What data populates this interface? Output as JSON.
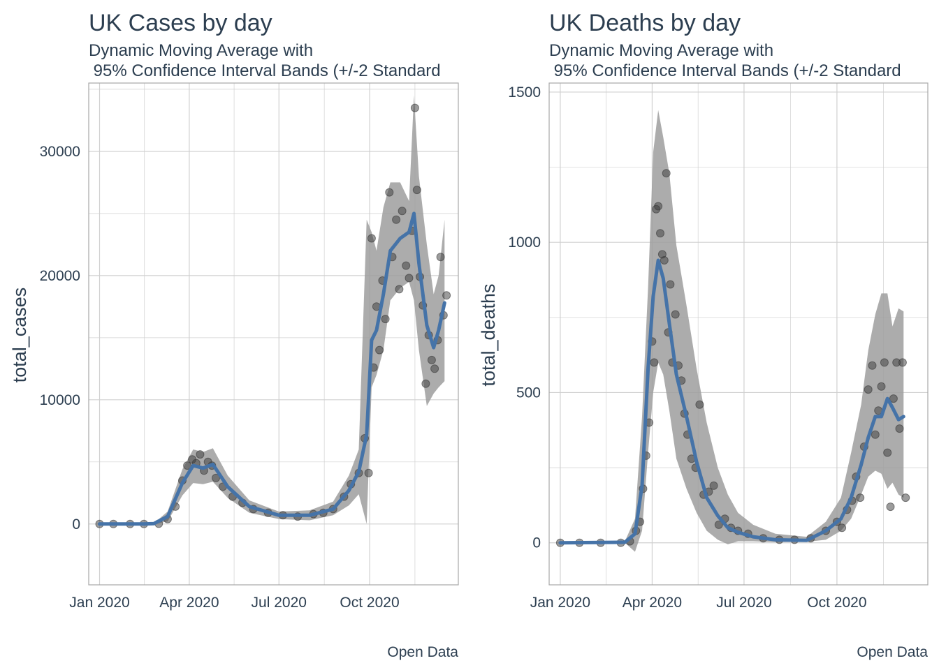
{
  "colors": {
    "text": "#2c3e50",
    "grid": "#d0d0d0",
    "panel_border": "#a8a8a8",
    "band": "#9e9e9e",
    "points": "#3a3a3a",
    "line": "#4573a8"
  },
  "chart_data": [
    {
      "type": "scatter",
      "title": "UK Cases by day",
      "subtitle_lines": [
        "Dynamic Moving Average with",
        " 95% Confidence Interval Bands (+/-2 Standard"
      ],
      "xlabel": "",
      "ylabel": "total_cases",
      "caption": "Open Data",
      "xlim": [
        "2019-12-21",
        "2020-12-30"
      ],
      "ylim": [
        -4900,
        35500
      ],
      "x_ticks": [
        {
          "date": "2020-01-01",
          "label": "Jan 2020"
        },
        {
          "date": "2020-04-01",
          "label": "Apr 2020"
        },
        {
          "date": "2020-07-01",
          "label": "Jul 2020"
        },
        {
          "date": "2020-10-01",
          "label": "Oct 2020"
        }
      ],
      "y_ticks": [
        0,
        10000,
        20000,
        30000
      ],
      "grid": true,
      "legend": "none",
      "series": [
        {
          "kind": "moving_average",
          "x": [
            "2020-01-01",
            "2020-02-15",
            "2020-02-25",
            "2020-03-10",
            "2020-03-25",
            "2020-04-05",
            "2020-04-15",
            "2020-04-25",
            "2020-05-10",
            "2020-06-01",
            "2020-07-01",
            "2020-08-01",
            "2020-08-25",
            "2020-09-10",
            "2020-09-20",
            "2020-09-28",
            "2020-10-03",
            "2020-10-08",
            "2020-10-15",
            "2020-10-22",
            "2020-11-01",
            "2020-11-10",
            "2020-11-15",
            "2020-11-20",
            "2020-11-28",
            "2020-12-05",
            "2020-12-10",
            "2020-12-16"
          ],
          "y": [
            0,
            0,
            30,
            600,
            3300,
            4700,
            4500,
            4800,
            3000,
            1400,
            700,
            700,
            1200,
            2700,
            4200,
            7200,
            14800,
            15600,
            18500,
            22000,
            23000,
            23500,
            25000,
            21000,
            16000,
            14200,
            15600,
            17800
          ],
          "band_lower": [
            0,
            0,
            0,
            200,
            2300,
            3300,
            3200,
            3400,
            2100,
            900,
            400,
            300,
            700,
            1500,
            2400,
            0,
            11000,
            12000,
            14000,
            18000,
            19000,
            19500,
            18000,
            14000,
            9500,
            10500,
            11000,
            11500
          ],
          "band_upper": [
            0,
            0,
            60,
            1000,
            4400,
            6000,
            5800,
            6100,
            3900,
            1900,
            1000,
            1100,
            1800,
            3900,
            6000,
            24500,
            23500,
            22000,
            25500,
            27500,
            27500,
            26000,
            34500,
            28000,
            22500,
            18500,
            20000,
            24500
          ]
        },
        {
          "kind": "daily_points",
          "x": [
            "2020-01-01",
            "2020-01-15",
            "2020-02-01",
            "2020-02-15",
            "2020-03-01",
            "2020-03-10",
            "2020-03-18",
            "2020-03-25",
            "2020-03-30",
            "2020-04-04",
            "2020-04-08",
            "2020-04-12",
            "2020-04-16",
            "2020-04-20",
            "2020-04-24",
            "2020-04-28",
            "2020-05-05",
            "2020-05-15",
            "2020-05-25",
            "2020-06-05",
            "2020-06-20",
            "2020-07-05",
            "2020-07-20",
            "2020-08-05",
            "2020-08-15",
            "2020-08-25",
            "2020-09-05",
            "2020-09-12",
            "2020-09-20",
            "2020-09-26",
            "2020-09-30",
            "2020-10-03",
            "2020-10-05",
            "2020-10-08",
            "2020-10-11",
            "2020-10-14",
            "2020-10-17",
            "2020-10-21",
            "2020-10-24",
            "2020-10-28",
            "2020-10-31",
            "2020-11-03",
            "2020-11-07",
            "2020-11-10",
            "2020-11-13",
            "2020-11-16",
            "2020-11-18",
            "2020-11-21",
            "2020-11-24",
            "2020-11-27",
            "2020-11-30",
            "2020-12-03",
            "2020-12-06",
            "2020-12-09",
            "2020-12-12",
            "2020-12-15",
            "2020-12-18"
          ],
          "y": [
            0,
            0,
            0,
            0,
            20,
            400,
            1400,
            3500,
            4700,
            5200,
            4900,
            5600,
            4300,
            5000,
            4700,
            3700,
            3000,
            2200,
            1700,
            1200,
            900,
            700,
            600,
            800,
            900,
            1200,
            2200,
            3200,
            4100,
            6900,
            4100,
            23000,
            12600,
            17500,
            14000,
            19600,
            16500,
            26700,
            21500,
            24500,
            18900,
            25200,
            20800,
            19800,
            23600,
            33500,
            26900,
            19900,
            17600,
            11300,
            15200,
            13200,
            12500,
            14800,
            21500,
            16800,
            18400
          ]
        }
      ]
    },
    {
      "type": "scatter",
      "title": "UK Deaths by day",
      "subtitle_lines": [
        "Dynamic Moving Average with",
        " 95% Confidence Interval Bands (+/-2 Standard"
      ],
      "xlabel": "",
      "ylabel": "total_deaths",
      "caption": "Open Data",
      "xlim": [
        "2019-12-21",
        "2020-12-30"
      ],
      "ylim": [
        -140,
        1530
      ],
      "x_ticks": [
        {
          "date": "2020-01-01",
          "label": "Jan 2020"
        },
        {
          "date": "2020-04-01",
          "label": "Apr 2020"
        },
        {
          "date": "2020-07-01",
          "label": "Jul 2020"
        },
        {
          "date": "2020-10-01",
          "label": "Oct 2020"
        }
      ],
      "y_ticks": [
        0,
        500,
        1000,
        1500
      ],
      "grid": true,
      "legend": "none",
      "series": [
        {
          "kind": "moving_average",
          "x": [
            "2020-01-01",
            "2020-03-05",
            "2020-03-15",
            "2020-03-22",
            "2020-03-28",
            "2020-04-02",
            "2020-04-07",
            "2020-04-12",
            "2020-04-18",
            "2020-04-25",
            "2020-05-05",
            "2020-05-15",
            "2020-05-25",
            "2020-06-05",
            "2020-06-15",
            "2020-06-25",
            "2020-07-10",
            "2020-08-01",
            "2020-09-01",
            "2020-09-20",
            "2020-10-05",
            "2020-10-15",
            "2020-10-25",
            "2020-11-01",
            "2020-11-08",
            "2020-11-14",
            "2020-11-20",
            "2020-11-25",
            "2020-12-01",
            "2020-12-06"
          ],
          "y": [
            0,
            2,
            30,
            190,
            580,
            820,
            940,
            880,
            730,
            560,
            420,
            270,
            150,
            90,
            50,
            35,
            20,
            10,
            8,
            40,
            80,
            150,
            260,
            350,
            420,
            420,
            480,
            450,
            410,
            420
          ],
          "band_lower": [
            0,
            0,
            -30,
            40,
            300,
            500,
            600,
            560,
            440,
            280,
            180,
            100,
            40,
            10,
            -5,
            5,
            5,
            2,
            3,
            10,
            40,
            80,
            160,
            220,
            240,
            230,
            180,
            200,
            160,
            150
          ],
          "band_upper": [
            0,
            5,
            80,
            420,
            850,
            1300,
            1440,
            1350,
            1230,
            990,
            790,
            580,
            400,
            250,
            160,
            100,
            60,
            30,
            20,
            70,
            150,
            300,
            460,
            640,
            760,
            830,
            830,
            720,
            780,
            770
          ]
        },
        {
          "kind": "daily_points",
          "x": [
            "2020-01-01",
            "2020-01-20",
            "2020-02-10",
            "2020-03-01",
            "2020-03-10",
            "2020-03-16",
            "2020-03-20",
            "2020-03-23",
            "2020-03-26",
            "2020-03-29",
            "2020-04-01",
            "2020-04-03",
            "2020-04-05",
            "2020-04-07",
            "2020-04-09",
            "2020-04-11",
            "2020-04-13",
            "2020-04-15",
            "2020-04-17",
            "2020-04-19",
            "2020-04-21",
            "2020-04-24",
            "2020-04-27",
            "2020-04-30",
            "2020-05-03",
            "2020-05-06",
            "2020-05-10",
            "2020-05-14",
            "2020-05-18",
            "2020-05-22",
            "2020-05-27",
            "2020-06-01",
            "2020-06-06",
            "2020-06-12",
            "2020-06-18",
            "2020-06-25",
            "2020-07-05",
            "2020-07-20",
            "2020-08-05",
            "2020-08-20",
            "2020-09-05",
            "2020-09-20",
            "2020-10-01",
            "2020-10-06",
            "2020-10-11",
            "2020-10-16",
            "2020-10-20",
            "2020-10-24",
            "2020-10-28",
            "2020-11-01",
            "2020-11-05",
            "2020-11-08",
            "2020-11-11",
            "2020-11-14",
            "2020-11-17",
            "2020-11-20",
            "2020-11-23",
            "2020-11-26",
            "2020-11-29",
            "2020-12-02",
            "2020-12-05",
            "2020-12-08"
          ],
          "y": [
            0,
            0,
            0,
            0,
            5,
            40,
            70,
            180,
            290,
            400,
            670,
            600,
            1110,
            1120,
            1030,
            960,
            940,
            1230,
            700,
            860,
            600,
            760,
            590,
            540,
            430,
            360,
            280,
            250,
            460,
            160,
            170,
            190,
            60,
            80,
            50,
            40,
            30,
            15,
            10,
            10,
            15,
            40,
            70,
            50,
            110,
            140,
            220,
            150,
            320,
            510,
            590,
            360,
            440,
            520,
            600,
            300,
            120,
            480,
            600,
            380,
            600,
            150
          ]
        }
      ]
    }
  ]
}
